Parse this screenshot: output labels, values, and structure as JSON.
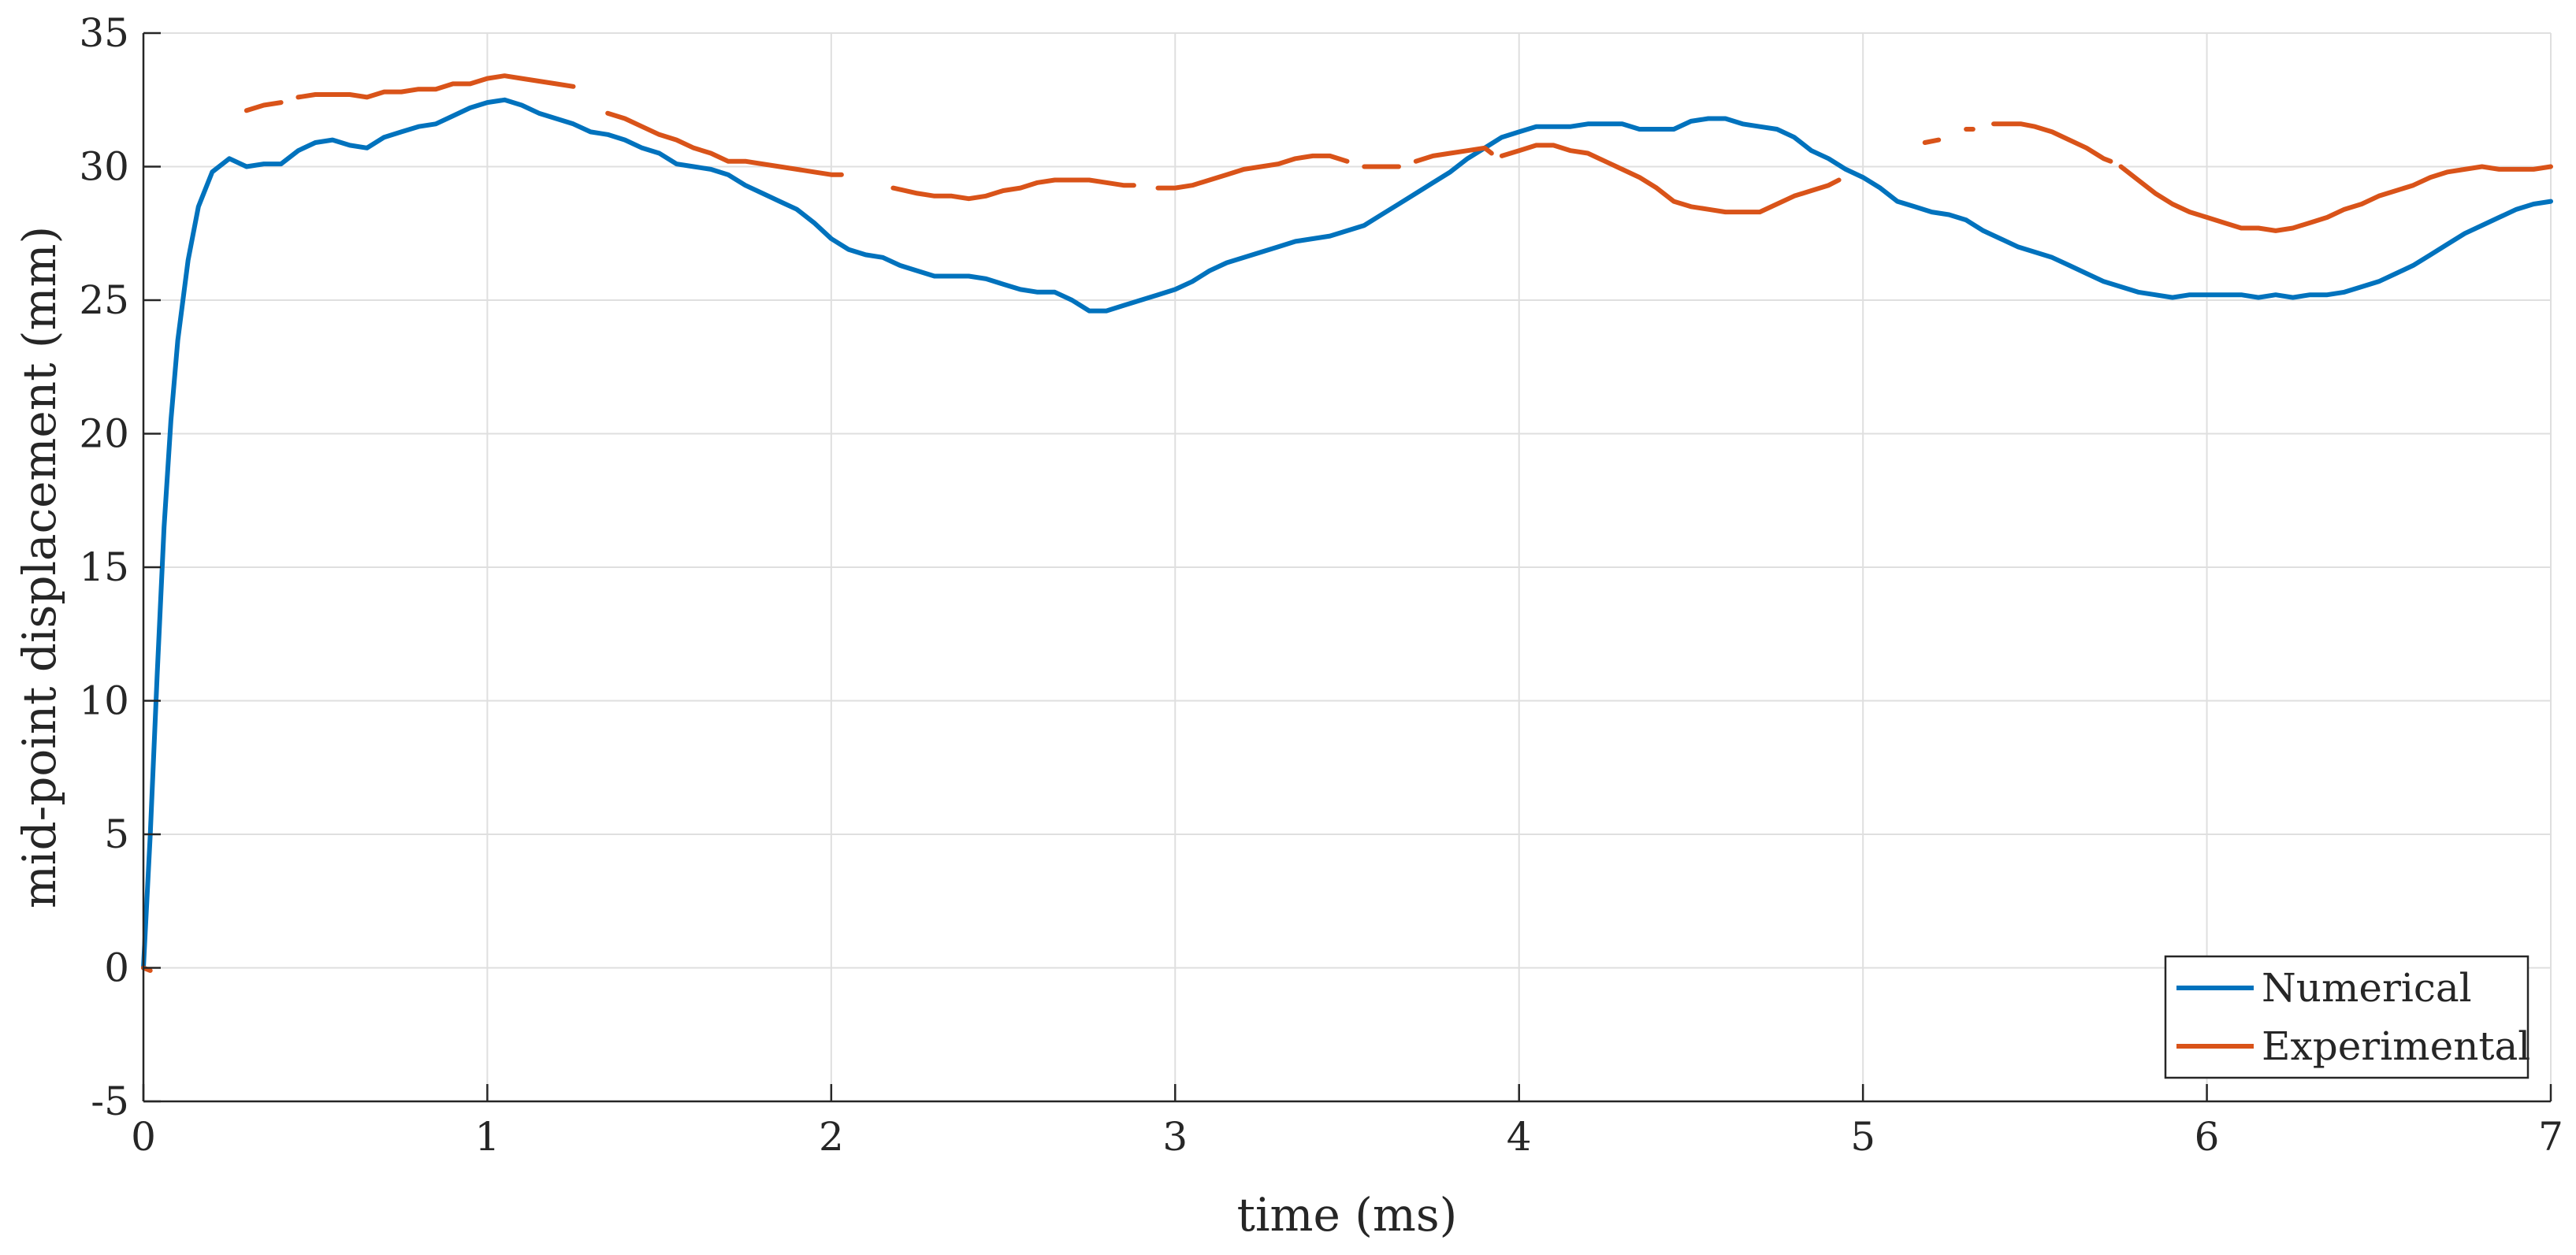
{
  "chart_data": {
    "type": "line",
    "xlabel": "time (ms)",
    "ylabel": "mid-point displacement (mm)",
    "xlim": [
      0,
      7
    ],
    "ylim": [
      -5,
      35
    ],
    "xticks": [
      0,
      1,
      2,
      3,
      4,
      5,
      6,
      7
    ],
    "yticks": [
      -5,
      0,
      5,
      10,
      15,
      20,
      25,
      30,
      35
    ],
    "grid": true,
    "legend": {
      "position": "bottom-right"
    },
    "series": [
      {
        "name": "Numerical",
        "color": "#0072BD",
        "segments": [
          [
            [
              0.0,
              0.0
            ],
            [
              0.02,
              5.0
            ],
            [
              0.04,
              11.0
            ],
            [
              0.06,
              16.5
            ],
            [
              0.08,
              20.5
            ],
            [
              0.1,
              23.5
            ],
            [
              0.13,
              26.5
            ],
            [
              0.16,
              28.5
            ],
            [
              0.2,
              29.8
            ],
            [
              0.25,
              30.3
            ],
            [
              0.3,
              30.0
            ],
            [
              0.35,
              30.1
            ],
            [
              0.4,
              30.1
            ],
            [
              0.45,
              30.6
            ],
            [
              0.5,
              30.9
            ],
            [
              0.55,
              31.0
            ],
            [
              0.6,
              30.8
            ],
            [
              0.65,
              30.7
            ],
            [
              0.7,
              31.1
            ],
            [
              0.75,
              31.3
            ],
            [
              0.8,
              31.5
            ],
            [
              0.85,
              31.6
            ],
            [
              0.9,
              31.9
            ],
            [
              0.95,
              32.2
            ],
            [
              1.0,
              32.4
            ],
            [
              1.05,
              32.5
            ],
            [
              1.1,
              32.3
            ],
            [
              1.15,
              32.0
            ],
            [
              1.2,
              31.8
            ],
            [
              1.25,
              31.6
            ],
            [
              1.3,
              31.3
            ],
            [
              1.35,
              31.2
            ],
            [
              1.4,
              31.0
            ],
            [
              1.45,
              30.7
            ],
            [
              1.5,
              30.5
            ],
            [
              1.55,
              30.1
            ],
            [
              1.6,
              30.0
            ],
            [
              1.65,
              29.9
            ],
            [
              1.7,
              29.7
            ],
            [
              1.75,
              29.3
            ],
            [
              1.8,
              29.0
            ],
            [
              1.85,
              28.7
            ],
            [
              1.9,
              28.4
            ],
            [
              1.95,
              27.9
            ],
            [
              2.0,
              27.3
            ],
            [
              2.05,
              26.9
            ],
            [
              2.1,
              26.7
            ],
            [
              2.15,
              26.6
            ],
            [
              2.2,
              26.3
            ],
            [
              2.25,
              26.1
            ],
            [
              2.3,
              25.9
            ],
            [
              2.35,
              25.9
            ],
            [
              2.4,
              25.9
            ],
            [
              2.45,
              25.8
            ],
            [
              2.5,
              25.6
            ],
            [
              2.55,
              25.4
            ],
            [
              2.6,
              25.3
            ],
            [
              2.65,
              25.3
            ],
            [
              2.7,
              25.0
            ],
            [
              2.75,
              24.6
            ],
            [
              2.8,
              24.6
            ],
            [
              2.85,
              24.8
            ],
            [
              2.9,
              25.0
            ],
            [
              2.95,
              25.2
            ],
            [
              3.0,
              25.4
            ],
            [
              3.05,
              25.7
            ],
            [
              3.1,
              26.1
            ],
            [
              3.15,
              26.4
            ],
            [
              3.2,
              26.6
            ],
            [
              3.25,
              26.8
            ],
            [
              3.3,
              27.0
            ],
            [
              3.35,
              27.2
            ],
            [
              3.4,
              27.3
            ],
            [
              3.45,
              27.4
            ],
            [
              3.5,
              27.6
            ],
            [
              3.55,
              27.8
            ],
            [
              3.6,
              28.2
            ],
            [
              3.65,
              28.6
            ],
            [
              3.7,
              29.0
            ],
            [
              3.75,
              29.4
            ],
            [
              3.8,
              29.8
            ],
            [
              3.85,
              30.3
            ],
            [
              3.9,
              30.7
            ],
            [
              3.95,
              31.1
            ],
            [
              4.0,
              31.3
            ],
            [
              4.05,
              31.5
            ],
            [
              4.1,
              31.5
            ],
            [
              4.15,
              31.5
            ],
            [
              4.2,
              31.6
            ],
            [
              4.25,
              31.6
            ],
            [
              4.3,
              31.6
            ],
            [
              4.35,
              31.4
            ],
            [
              4.4,
              31.4
            ],
            [
              4.45,
              31.4
            ],
            [
              4.5,
              31.7
            ],
            [
              4.55,
              31.8
            ],
            [
              4.6,
              31.8
            ],
            [
              4.65,
              31.6
            ],
            [
              4.7,
              31.5
            ],
            [
              4.75,
              31.4
            ],
            [
              4.8,
              31.1
            ],
            [
              4.85,
              30.6
            ],
            [
              4.9,
              30.3
            ],
            [
              4.95,
              29.9
            ],
            [
              5.0,
              29.6
            ],
            [
              5.05,
              29.2
            ],
            [
              5.1,
              28.7
            ],
            [
              5.15,
              28.5
            ],
            [
              5.2,
              28.3
            ],
            [
              5.25,
              28.2
            ],
            [
              5.3,
              28.0
            ],
            [
              5.35,
              27.6
            ],
            [
              5.4,
              27.3
            ],
            [
              5.45,
              27.0
            ],
            [
              5.5,
              26.8
            ],
            [
              5.55,
              26.6
            ],
            [
              5.6,
              26.3
            ],
            [
              5.65,
              26.0
            ],
            [
              5.7,
              25.7
            ],
            [
              5.75,
              25.5
            ],
            [
              5.8,
              25.3
            ],
            [
              5.85,
              25.2
            ],
            [
              5.9,
              25.1
            ],
            [
              5.95,
              25.2
            ],
            [
              6.0,
              25.2
            ],
            [
              6.05,
              25.2
            ],
            [
              6.1,
              25.2
            ],
            [
              6.15,
              25.1
            ],
            [
              6.2,
              25.2
            ],
            [
              6.25,
              25.1
            ],
            [
              6.3,
              25.2
            ],
            [
              6.35,
              25.2
            ],
            [
              6.4,
              25.3
            ],
            [
              6.45,
              25.5
            ],
            [
              6.5,
              25.7
            ],
            [
              6.55,
              26.0
            ],
            [
              6.6,
              26.3
            ],
            [
              6.65,
              26.7
            ],
            [
              6.7,
              27.1
            ],
            [
              6.75,
              27.5
            ],
            [
              6.8,
              27.8
            ],
            [
              6.85,
              28.1
            ],
            [
              6.9,
              28.4
            ],
            [
              6.95,
              28.6
            ],
            [
              7.0,
              28.7
            ]
          ]
        ]
      },
      {
        "name": "Experimental",
        "color": "#D95319",
        "segments": [
          [
            [
              0.0,
              0.0
            ],
            [
              0.02,
              -0.1
            ]
          ],
          [
            [
              0.3,
              32.1
            ],
            [
              0.35,
              32.3
            ],
            [
              0.4,
              32.4
            ]
          ],
          [
            [
              0.45,
              32.6
            ],
            [
              0.5,
              32.7
            ],
            [
              0.55,
              32.7
            ],
            [
              0.6,
              32.7
            ],
            [
              0.65,
              32.6
            ],
            [
              0.7,
              32.8
            ],
            [
              0.75,
              32.8
            ],
            [
              0.8,
              32.9
            ],
            [
              0.85,
              32.9
            ],
            [
              0.9,
              33.1
            ],
            [
              0.95,
              33.1
            ],
            [
              1.0,
              33.3
            ],
            [
              1.05,
              33.4
            ],
            [
              1.1,
              33.3
            ],
            [
              1.15,
              33.2
            ],
            [
              1.2,
              33.1
            ],
            [
              1.25,
              33.0
            ]
          ],
          [
            [
              1.35,
              32.0
            ],
            [
              1.4,
              31.8
            ],
            [
              1.45,
              31.5
            ],
            [
              1.5,
              31.2
            ],
            [
              1.55,
              31.0
            ],
            [
              1.6,
              30.7
            ],
            [
              1.65,
              30.5
            ],
            [
              1.7,
              30.2
            ],
            [
              1.75,
              30.2
            ],
            [
              1.8,
              30.1
            ],
            [
              1.85,
              30.0
            ],
            [
              1.9,
              29.9
            ],
            [
              1.95,
              29.8
            ],
            [
              2.0,
              29.7
            ],
            [
              2.03,
              29.7
            ]
          ],
          [
            [
              2.18,
              29.2
            ],
            [
              2.25,
              29.0
            ],
            [
              2.3,
              28.9
            ],
            [
              2.35,
              28.9
            ],
            [
              2.4,
              28.8
            ],
            [
              2.45,
              28.9
            ],
            [
              2.5,
              29.1
            ],
            [
              2.55,
              29.2
            ],
            [
              2.6,
              29.4
            ],
            [
              2.65,
              29.5
            ],
            [
              2.7,
              29.5
            ],
            [
              2.75,
              29.5
            ],
            [
              2.8,
              29.4
            ],
            [
              2.85,
              29.3
            ],
            [
              2.88,
              29.3
            ]
          ],
          [
            [
              2.95,
              29.2
            ],
            [
              3.0,
              29.2
            ],
            [
              3.05,
              29.3
            ],
            [
              3.1,
              29.5
            ],
            [
              3.15,
              29.7
            ],
            [
              3.2,
              29.9
            ],
            [
              3.25,
              30.0
            ],
            [
              3.3,
              30.1
            ],
            [
              3.35,
              30.3
            ],
            [
              3.4,
              30.4
            ],
            [
              3.45,
              30.4
            ],
            [
              3.5,
              30.2
            ]
          ],
          [
            [
              3.55,
              30.0
            ],
            [
              3.6,
              30.0
            ],
            [
              3.65,
              30.0
            ]
          ],
          [
            [
              3.7,
              30.2
            ],
            [
              3.75,
              30.4
            ],
            [
              3.8,
              30.5
            ],
            [
              3.85,
              30.6
            ],
            [
              3.9,
              30.7
            ],
            [
              3.92,
              30.5
            ]
          ],
          [
            [
              3.95,
              30.4
            ],
            [
              4.0,
              30.6
            ],
            [
              4.05,
              30.8
            ],
            [
              4.1,
              30.8
            ],
            [
              4.15,
              30.6
            ],
            [
              4.2,
              30.5
            ],
            [
              4.25,
              30.2
            ],
            [
              4.3,
              29.9
            ],
            [
              4.35,
              29.6
            ],
            [
              4.4,
              29.2
            ],
            [
              4.45,
              28.7
            ],
            [
              4.5,
              28.5
            ],
            [
              4.55,
              28.4
            ],
            [
              4.6,
              28.3
            ],
            [
              4.65,
              28.3
            ],
            [
              4.7,
              28.3
            ],
            [
              4.75,
              28.6
            ],
            [
              4.8,
              28.9
            ],
            [
              4.85,
              29.1
            ],
            [
              4.9,
              29.3
            ],
            [
              4.93,
              29.5
            ]
          ],
          [
            [
              5.18,
              30.9
            ],
            [
              5.22,
              31.0
            ]
          ],
          [
            [
              5.3,
              31.4
            ],
            [
              5.32,
              31.4
            ]
          ],
          [
            [
              5.38,
              31.6
            ],
            [
              5.42,
              31.6
            ],
            [
              5.46,
              31.6
            ],
            [
              5.5,
              31.5
            ],
            [
              5.55,
              31.3
            ],
            [
              5.6,
              31.0
            ],
            [
              5.65,
              30.7
            ],
            [
              5.7,
              30.3
            ],
            [
              5.72,
              30.2
            ]
          ],
          [
            [
              5.75,
              30.0
            ],
            [
              5.8,
              29.5
            ],
            [
              5.85,
              29.0
            ],
            [
              5.9,
              28.6
            ],
            [
              5.95,
              28.3
            ],
            [
              6.0,
              28.1
            ],
            [
              6.05,
              27.9
            ],
            [
              6.1,
              27.7
            ],
            [
              6.15,
              27.7
            ],
            [
              6.2,
              27.6
            ],
            [
              6.25,
              27.7
            ],
            [
              6.3,
              27.9
            ],
            [
              6.35,
              28.1
            ],
            [
              6.4,
              28.4
            ],
            [
              6.45,
              28.6
            ],
            [
              6.5,
              28.9
            ],
            [
              6.55,
              29.1
            ],
            [
              6.6,
              29.3
            ],
            [
              6.65,
              29.6
            ],
            [
              6.7,
              29.8
            ],
            [
              6.75,
              29.9
            ],
            [
              6.8,
              30.0
            ],
            [
              6.85,
              29.9
            ],
            [
              6.9,
              29.9
            ],
            [
              6.95,
              29.9
            ],
            [
              7.0,
              30.0
            ]
          ]
        ]
      }
    ]
  }
}
